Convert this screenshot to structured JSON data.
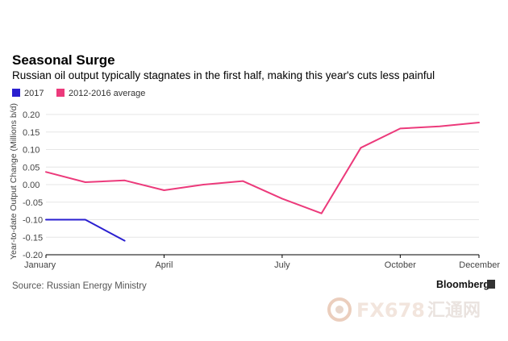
{
  "chart_data": {
    "type": "line",
    "title": "Seasonal Surge",
    "subtitle": "Russian oil output typically stagnates in the first half, making this year's cuts less painful",
    "ylabel": "Year-to-date Output Change (Millions b/d)",
    "ylim": [
      -0.2,
      0.2
    ],
    "yticks": [
      0.2,
      0.15,
      0.1,
      0.05,
      0.0,
      -0.05,
      -0.1,
      -0.15,
      -0.2
    ],
    "ytick_labels": [
      "0.20",
      "0.15",
      "0.10",
      "0.05",
      "0.00",
      "-0.05",
      "-0.10",
      "-0.15",
      "-0.20"
    ],
    "xlim": [
      1,
      12
    ],
    "xticks": [
      {
        "month": 1,
        "label": "January"
      },
      {
        "month": 4,
        "label": "April"
      },
      {
        "month": 7,
        "label": "July"
      },
      {
        "month": 10,
        "label": "October"
      },
      {
        "month": 12,
        "label": "December"
      }
    ],
    "series": [
      {
        "name": "2017",
        "color": "#2a1fd0",
        "x": [
          1,
          2,
          3
        ],
        "values": [
          -0.1,
          -0.1,
          -0.16
        ]
      },
      {
        "name": "2012-2016 average",
        "color": "#ec3a7b",
        "x": [
          1,
          2,
          3,
          4,
          5,
          6,
          7,
          8,
          9,
          10,
          11,
          12
        ],
        "values": [
          0.036,
          0.007,
          0.012,
          -0.016,
          0.0,
          0.01,
          -0.04,
          -0.082,
          0.105,
          0.16,
          0.166,
          0.177
        ]
      }
    ],
    "grid": true,
    "legend_position": "top-left",
    "source": "Source: Russian Energy Ministry"
  },
  "branding": {
    "logo_text": "Bloomberg",
    "watermark_latin": "FX678",
    "watermark_cn": "汇通网"
  }
}
